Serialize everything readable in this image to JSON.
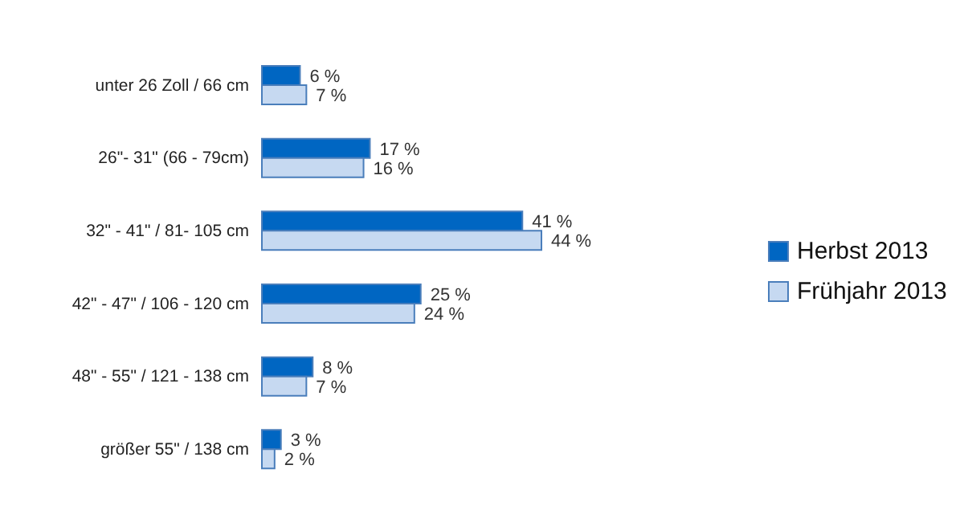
{
  "chart_data": {
    "type": "bar",
    "orientation": "horizontal",
    "categories": [
      "unter 26 Zoll / 66 cm",
      "26\"- 31\" (66 - 79cm)",
      "32\" - 41\" / 81- 105 cm",
      "42\" - 47\"  / 106 - 120 cm",
      "48\" - 55\" / 121 - 138 cm",
      "größer  55\" / 138 cm"
    ],
    "series": [
      {
        "name": "Herbst 2013",
        "color": "#0066c2",
        "values": [
          6,
          17,
          41,
          25,
          8,
          3
        ],
        "value_labels": [
          "6 %",
          "17 %",
          "41 %",
          "25 %",
          "8 %",
          "3 %"
        ]
      },
      {
        "name": "Frühjahr 2013",
        "color": "#c6d9f1",
        "values": [
          7,
          16,
          44,
          24,
          7,
          2
        ],
        "value_labels": [
          "7 %",
          "16 %",
          "44 %",
          "24 %",
          "7 %",
          "2 %"
        ]
      }
    ],
    "legend": "right",
    "grid": false
  }
}
